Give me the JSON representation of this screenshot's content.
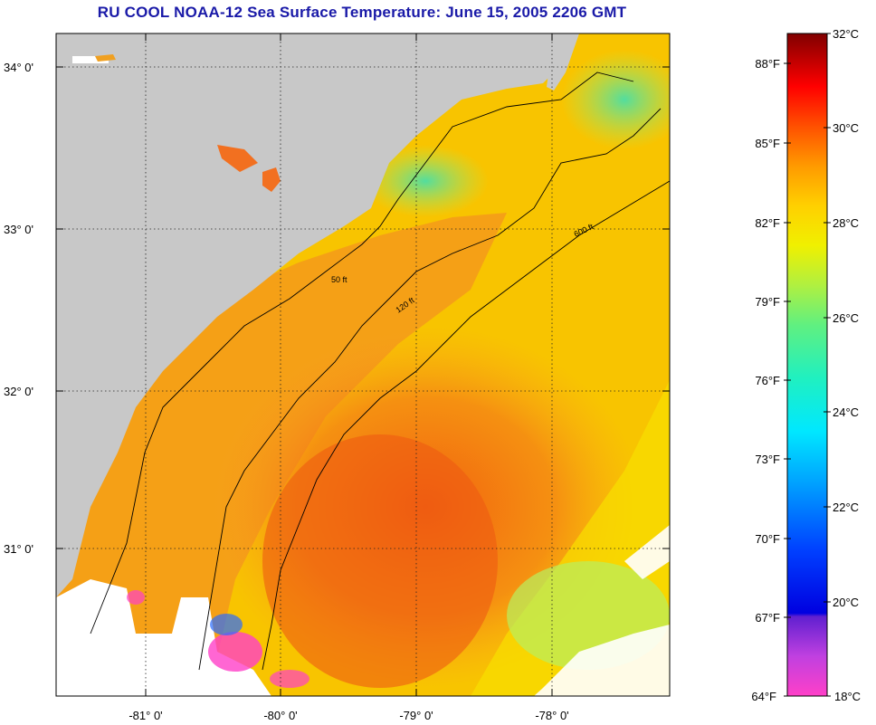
{
  "title": "RU COOL  NOAA-12  Sea Surface Temperature:  June 15, 2005 2206 GMT",
  "map": {
    "lat_labels": [
      "34° 0'",
      "33° 0'",
      "32° 0'",
      "31° 0'"
    ],
    "lon_labels": [
      "-81° 0'",
      "-80° 0'",
      "-79° 0'",
      "-78° 0'"
    ],
    "contours": [
      {
        "label": "50 ft"
      },
      {
        "label": "120 ft"
      },
      {
        "label": "600 ft"
      }
    ]
  },
  "colorbar": {
    "celsius": [
      "32°C",
      "30°C",
      "28°C",
      "26°C",
      "24°C",
      "22°C",
      "20°C",
      "18°C"
    ],
    "fahrenheit": [
      "88°F",
      "85°F",
      "82°F",
      "79°F",
      "76°F",
      "73°F",
      "70°F",
      "67°F",
      "64°F"
    ]
  },
  "colors": {
    "title": "#1a1aa8",
    "land": "#c8c8c8",
    "warm_core": "#f06a10",
    "mid_water": "#f8c800",
    "cool_water": "#55e0a8"
  }
}
